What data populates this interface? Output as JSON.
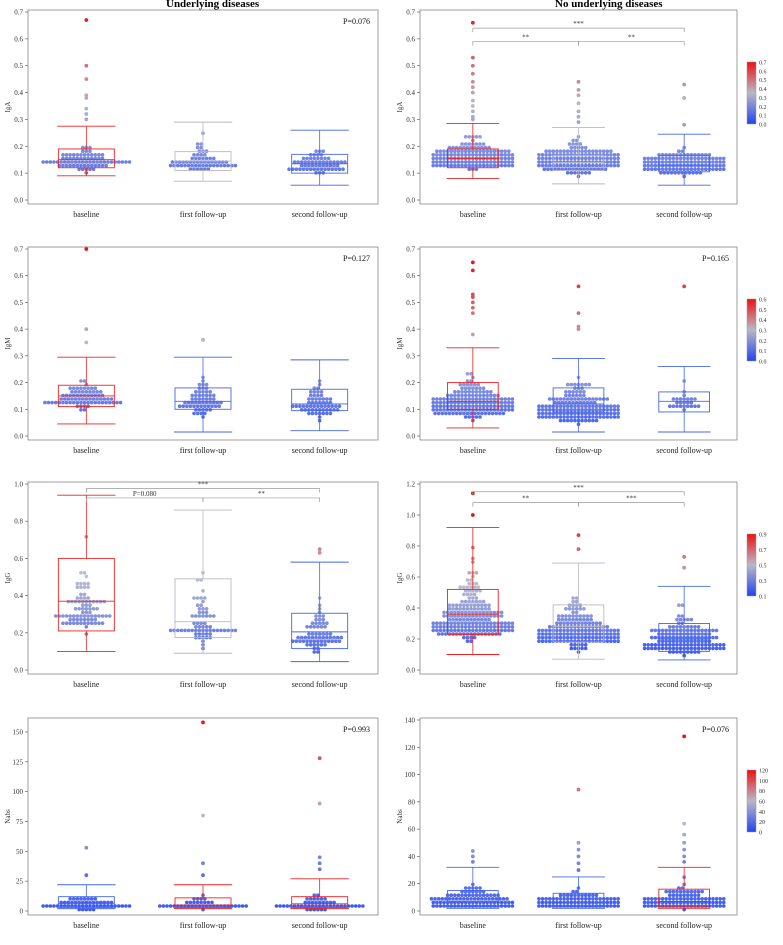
{
  "column_titles": [
    "Underlying diseases",
    "No underlying diseases"
  ],
  "colors": {
    "low": "#2244ee",
    "mid": "#b8b8c8",
    "high": "#ee1111",
    "frame": "#888888",
    "bracket": "#999999"
  },
  "chart_data": [
    {
      "id": "iga-ud",
      "type": "box-dot",
      "title": "",
      "ylabel": "IgA",
      "xlabel": "",
      "categories": [
        "baseline",
        "first follow-up",
        "second follow-up"
      ],
      "ylim": [
        0,
        0.7
      ],
      "ticks": [
        0.0,
        0.1,
        0.2,
        0.3,
        0.4,
        0.5,
        0.6,
        0.7
      ],
      "tick_labels": [
        "0.0",
        "0.1",
        "0.2",
        "0.3",
        "0.4",
        "0.5",
        "0.6",
        "0.7"
      ],
      "pvalue": "P=0.076",
      "brackets": [],
      "colorbar": null,
      "boxes": [
        {
          "whisker_low": 0.09,
          "q1": 0.12,
          "median": 0.15,
          "q3": 0.19,
          "whisker_high": 0.275,
          "color": "#ee2222"
        },
        {
          "whisker_low": 0.07,
          "q1": 0.11,
          "median": 0.145,
          "q3": 0.18,
          "whisker_high": 0.29,
          "color": "#b8b8c8"
        },
        {
          "whisker_low": 0.055,
          "q1": 0.1,
          "median": 0.135,
          "q3": 0.17,
          "whisker_high": 0.26,
          "color": "#4466ee"
        }
      ],
      "outliers": [
        [
          0.3,
          0.32,
          0.34,
          0.38,
          0.39,
          0.45,
          0.5,
          0.67
        ],
        [],
        []
      ],
      "dots": [
        {
          "n": 75,
          "lo": 0.09,
          "hi": 0.275,
          "mode": 0.14
        },
        {
          "n": 60,
          "lo": 0.075,
          "hi": 0.33,
          "mode": 0.14
        },
        {
          "n": 60,
          "lo": 0.055,
          "hi": 0.26,
          "mode": 0.13
        }
      ]
    },
    {
      "id": "iga-nud",
      "type": "box-dot",
      "title": "",
      "ylabel": "IgA",
      "xlabel": "",
      "categories": [
        "baseline",
        "first follow-up",
        "second follow-up"
      ],
      "ylim": [
        0,
        0.7
      ],
      "ticks": [
        0.0,
        0.1,
        0.2,
        0.3,
        0.4,
        0.5,
        0.6,
        0.7
      ],
      "tick_labels": [
        "0.0",
        "0.1",
        "0.2",
        "0.3",
        "0.4",
        "0.5",
        "0.6",
        "0.7"
      ],
      "pvalue": "",
      "brackets": [
        {
          "from": 0,
          "to": 2,
          "y": 0.64,
          "label": "***"
        },
        {
          "from": 0,
          "to": 1,
          "y": 0.59,
          "label": "**"
        },
        {
          "from": 1,
          "to": 2,
          "y": 0.59,
          "label": "**"
        }
      ],
      "colorbar": {
        "min": 0,
        "max": 0.7,
        "ticks": [
          "0.7",
          "0.6",
          "0.5",
          "0.4",
          "0.3",
          "0.2",
          "0.1",
          "0.0"
        ]
      },
      "boxes": [
        {
          "whisker_low": 0.08,
          "q1": 0.12,
          "median": 0.155,
          "q3": 0.19,
          "whisker_high": 0.285,
          "color": "#ee2222"
        },
        {
          "whisker_low": 0.06,
          "q1": 0.11,
          "median": 0.14,
          "q3": 0.165,
          "whisker_high": 0.27,
          "color": "#b8b8c8"
        },
        {
          "whisker_low": 0.055,
          "q1": 0.105,
          "median": 0.13,
          "q3": 0.165,
          "whisker_high": 0.245,
          "color": "#4466ee"
        }
      ],
      "outliers": [
        [
          0.3,
          0.31,
          0.33,
          0.35,
          0.37,
          0.4,
          0.42,
          0.44,
          0.47,
          0.5,
          0.53,
          0.66
        ],
        [
          0.29,
          0.31,
          0.33,
          0.36,
          0.39,
          0.41,
          0.44
        ],
        [
          0.28,
          0.38,
          0.43
        ]
      ],
      "dots": [
        {
          "n": 260,
          "lo": 0.08,
          "hi": 0.29,
          "mode": 0.15
        },
        {
          "n": 240,
          "lo": 0.06,
          "hi": 0.3,
          "mode": 0.14
        },
        {
          "n": 230,
          "lo": 0.055,
          "hi": 0.25,
          "mode": 0.13
        }
      ]
    },
    {
      "id": "igm-ud",
      "type": "box-dot",
      "title": "",
      "ylabel": "IgM",
      "xlabel": "",
      "categories": [
        "baseline",
        "first follow-up",
        "second follow-up"
      ],
      "ylim": [
        0,
        0.7
      ],
      "ticks": [
        0.0,
        0.1,
        0.2,
        0.3,
        0.4,
        0.5,
        0.6,
        0.7
      ],
      "tick_labels": [
        "0.0",
        "0.1",
        "0.2",
        "0.3",
        "0.4",
        "0.5",
        "0.6",
        "0.7"
      ],
      "pvalue": "P=0.127",
      "brackets": [],
      "colorbar": null,
      "boxes": [
        {
          "whisker_low": 0.045,
          "q1": 0.11,
          "median": 0.15,
          "q3": 0.19,
          "whisker_high": 0.295,
          "color": "#ee2222"
        },
        {
          "whisker_low": 0.015,
          "q1": 0.1,
          "median": 0.13,
          "q3": 0.18,
          "whisker_high": 0.295,
          "color": "#4466ee"
        },
        {
          "whisker_low": 0.02,
          "q1": 0.095,
          "median": 0.12,
          "q3": 0.175,
          "whisker_high": 0.285,
          "color": "#4466ee"
        }
      ],
      "outliers": [
        [
          0.35,
          0.4,
          0.7
        ],
        [
          0.36
        ],
        []
      ],
      "dots": [
        {
          "n": 75,
          "lo": 0.045,
          "hi": 0.3,
          "mode": 0.14
        },
        {
          "n": 60,
          "lo": 0.015,
          "hi": 0.3,
          "mode": 0.12
        },
        {
          "n": 60,
          "lo": 0.02,
          "hi": 0.285,
          "mode": 0.11
        }
      ]
    },
    {
      "id": "igm-nud",
      "type": "box-dot",
      "title": "",
      "ylabel": "IgM",
      "xlabel": "",
      "categories": [
        "baseline",
        "first follow-up",
        "second follow-up"
      ],
      "ylim": [
        0,
        0.7
      ],
      "ticks": [
        0.0,
        0.1,
        0.2,
        0.3,
        0.4,
        0.5,
        0.6,
        0.7
      ],
      "tick_labels": [
        "0.0",
        "0.1",
        "0.2",
        "0.3",
        "0.4",
        "0.5",
        "0.6",
        "0.7"
      ],
      "pvalue": "P=0.165",
      "brackets": [],
      "colorbar": {
        "min": 0,
        "max": 0.65,
        "ticks": [
          "0.6",
          "0.5",
          "0.4",
          "0.3",
          "0.2",
          "0.1",
          "0.0"
        ]
      },
      "boxes": [
        {
          "whisker_low": 0.03,
          "q1": 0.1,
          "median": 0.13,
          "q3": 0.2,
          "whisker_high": 0.33,
          "color": "#ee2222"
        },
        {
          "whisker_low": 0.015,
          "q1": 0.09,
          "median": 0.12,
          "q3": 0.18,
          "whisker_high": 0.29,
          "color": "#4466ee"
        },
        {
          "whisker_low": 0.015,
          "q1": 0.09,
          "median": 0.13,
          "q3": 0.165,
          "whisker_high": 0.26,
          "color": "#4466ee"
        }
      ],
      "outliers": [
        [
          0.38,
          0.46,
          0.48,
          0.5,
          0.52,
          0.53,
          0.62,
          0.65
        ],
        [
          0.4,
          0.41,
          0.46,
          0.56
        ],
        [
          0.56
        ]
      ],
      "dots": [
        {
          "n": 240,
          "lo": 0.03,
          "hi": 0.33,
          "mode": 0.11
        },
        {
          "n": 220,
          "lo": 0.015,
          "hi": 0.3,
          "mode": 0.09
        },
        {
          "n": 25,
          "lo": 0.015,
          "hi": 0.26,
          "mode": 0.13
        }
      ]
    },
    {
      "id": "igg-ud",
      "type": "box-dot",
      "title": "",
      "ylabel": "IgG",
      "xlabel": "",
      "categories": [
        "baseline",
        "first follow-up",
        "second follow-up"
      ],
      "ylim": [
        0,
        1.0
      ],
      "ticks": [
        0.0,
        0.2,
        0.4,
        0.6,
        0.8,
        1.0
      ],
      "tick_labels": [
        "0.0",
        "0.2",
        "0.4",
        "0.6",
        "0.8",
        "1.0"
      ],
      "pvalue": "",
      "brackets": [
        {
          "from": 0,
          "to": 2,
          "y": 0.975,
          "label": "***"
        },
        {
          "from": 0,
          "to": 1,
          "y": 0.925,
          "label": "P=0.080"
        },
        {
          "from": 1,
          "to": 2,
          "y": 0.925,
          "label": "**"
        }
      ],
      "colorbar": null,
      "boxes": [
        {
          "whisker_low": 0.1,
          "q1": 0.21,
          "median": 0.37,
          "q3": 0.6,
          "whisker_high": 0.94,
          "color": "#ee2222"
        },
        {
          "whisker_low": 0.09,
          "q1": 0.175,
          "median": 0.26,
          "q3": 0.49,
          "whisker_high": 0.86,
          "color": "#b8b8c8"
        },
        {
          "whisker_low": 0.045,
          "q1": 0.115,
          "median": 0.205,
          "q3": 0.305,
          "whisker_high": 0.58,
          "color": "#4466ee"
        }
      ],
      "outliers": [
        [],
        [],
        [
          0.63,
          0.65
        ]
      ],
      "dots": [
        {
          "n": 80,
          "lo": 0.1,
          "hi": 0.94,
          "mode": 0.3
        },
        {
          "n": 65,
          "lo": 0.09,
          "hi": 0.86,
          "mode": 0.22
        },
        {
          "n": 65,
          "lo": 0.045,
          "hi": 0.58,
          "mode": 0.17
        }
      ]
    },
    {
      "id": "igg-nud",
      "type": "box-dot",
      "title": "",
      "ylabel": "IgG",
      "xlabel": "",
      "categories": [
        "baseline",
        "first follow-up",
        "second follow-up"
      ],
      "ylim": [
        0,
        1.2
      ],
      "ticks": [
        0.0,
        0.2,
        0.4,
        0.6,
        0.8,
        1.0,
        1.2
      ],
      "tick_labels": [
        "0.0",
        "0.2",
        "0.4",
        "0.6",
        "0.8",
        "1.0",
        "1.2"
      ],
      "pvalue": "",
      "brackets": [
        {
          "from": 0,
          "to": 2,
          "y": 1.15,
          "label": "***"
        },
        {
          "from": 0,
          "to": 1,
          "y": 1.08,
          "label": "**"
        },
        {
          "from": 1,
          "to": 2,
          "y": 1.08,
          "label": "***"
        }
      ],
      "colorbar": {
        "min": 0.1,
        "max": 1.0,
        "ticks": [
          "0.9",
          "0.7",
          "0.5",
          "0.3",
          "0.1"
        ]
      },
      "boxes": [
        {
          "whisker_low": 0.1,
          "q1": 0.23,
          "median": 0.36,
          "q3": 0.52,
          "whisker_high": 0.92,
          "color": "#ee2222"
        },
        {
          "whisker_low": 0.07,
          "q1": 0.18,
          "median": 0.28,
          "q3": 0.42,
          "whisker_high": 0.69,
          "color": "#b8b8c8"
        },
        {
          "whisker_low": 0.065,
          "q1": 0.12,
          "median": 0.2,
          "q3": 0.3,
          "whisker_high": 0.54,
          "color": "#4466ee"
        }
      ],
      "outliers": [
        [
          1.0,
          1.14
        ],
        [
          0.78,
          0.87
        ],
        [
          0.66,
          0.73
        ]
      ],
      "dots": [
        {
          "n": 260,
          "lo": 0.1,
          "hi": 1.0,
          "mode": 0.3
        },
        {
          "n": 240,
          "lo": 0.07,
          "hi": 0.7,
          "mode": 0.22
        },
        {
          "n": 230,
          "lo": 0.065,
          "hi": 0.55,
          "mode": 0.16
        }
      ]
    },
    {
      "id": "nabs-ud",
      "type": "box-dot",
      "title": "",
      "ylabel": "Nabs",
      "xlabel": "",
      "categories": [
        "baseline",
        "first follow-up",
        "second follow-up"
      ],
      "ylim": [
        0,
        160
      ],
      "ticks": [
        0,
        25,
        50,
        75,
        100,
        125,
        150
      ],
      "tick_labels": [
        "0",
        "25",
        "50",
        "75",
        "100",
        "125",
        "150"
      ],
      "pvalue": "P=0.993",
      "brackets": [],
      "colorbar": null,
      "boxes": [
        {
          "whisker_low": 2,
          "q1": 3,
          "median": 6,
          "q3": 12,
          "whisker_high": 22,
          "color": "#4466ee"
        },
        {
          "whisker_low": 2,
          "q1": 3,
          "median": 5,
          "q3": 11,
          "whisker_high": 22,
          "color": "#ee2222"
        },
        {
          "whisker_low": 2,
          "q1": 3,
          "median": 6,
          "q3": 12,
          "whisker_high": 27,
          "color": "#ee2222"
        }
      ],
      "outliers": [
        [
          30,
          53
        ],
        [
          30,
          40,
          80,
          158
        ],
        [
          35,
          40,
          45,
          90,
          128
        ]
      ],
      "dots": [
        {
          "n": 75,
          "lo": 2,
          "hi": 22,
          "mode": 3
        },
        {
          "n": 60,
          "lo": 2,
          "hi": 22,
          "mode": 3
        },
        {
          "n": 60,
          "lo": 2,
          "hi": 27,
          "mode": 3
        }
      ]
    },
    {
      "id": "nabs-nud",
      "type": "box-dot",
      "title": "",
      "ylabel": "Nabs",
      "xlabel": "",
      "categories": [
        "baseline",
        "first follow-up",
        "second follow-up"
      ],
      "ylim": [
        0,
        140
      ],
      "ticks": [
        0,
        20,
        40,
        60,
        80,
        100,
        120,
        140
      ],
      "tick_labels": [
        "0",
        "20",
        "40",
        "60",
        "80",
        "100",
        "120",
        "140"
      ],
      "pvalue": "P=0.076",
      "brackets": [],
      "colorbar": {
        "min": 0,
        "max": 128,
        "ticks": [
          "120",
          "100",
          "80",
          "60",
          "40",
          "20",
          "0"
        ]
      },
      "boxes": [
        {
          "whisker_low": 2,
          "q1": 3,
          "median": 7,
          "q3": 15,
          "whisker_high": 32,
          "color": "#4466ee"
        },
        {
          "whisker_low": 2,
          "q1": 3,
          "median": 6,
          "q3": 13,
          "whisker_high": 25,
          "color": "#4466ee"
        },
        {
          "whisker_low": 2,
          "q1": 3,
          "median": 7,
          "q3": 16,
          "whisker_high": 32,
          "color": "#ee2222"
        }
      ],
      "outliers": [
        [
          36,
          40,
          44
        ],
        [
          30,
          35,
          40,
          45,
          50,
          89
        ],
        [
          36,
          40,
          45,
          50,
          56,
          64,
          128
        ]
      ],
      "dots": [
        {
          "n": 240,
          "lo": 2,
          "hi": 32,
          "mode": 3
        },
        {
          "n": 230,
          "lo": 2,
          "hi": 25,
          "mode": 3
        },
        {
          "n": 230,
          "lo": 2,
          "hi": 32,
          "mode": 3
        }
      ]
    }
  ]
}
